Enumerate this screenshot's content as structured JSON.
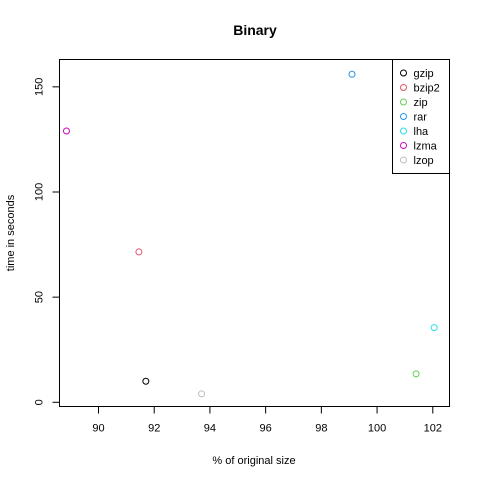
{
  "chart_data": {
    "type": "scatter",
    "title": "Binary",
    "xlabel": "% of original size",
    "ylabel": "time in seconds",
    "xlim": [
      88.6,
      102.6
    ],
    "ylim": [
      -2,
      163
    ],
    "x_ticks": [
      90,
      92,
      94,
      96,
      98,
      100,
      102
    ],
    "y_ticks": [
      0,
      50,
      100,
      150
    ],
    "grid": false,
    "legend_position": "top-right",
    "series": [
      {
        "name": "gzip",
        "color": "#000000",
        "x": 91.7,
        "y": 10
      },
      {
        "name": "bzip2",
        "color": "#DF536B",
        "x": 91.45,
        "y": 71.5
      },
      {
        "name": "zip",
        "color": "#61D04F",
        "x": 101.4,
        "y": 13.5
      },
      {
        "name": "rar",
        "color": "#2297E6",
        "x": 99.1,
        "y": 156
      },
      {
        "name": "lha",
        "color": "#28E2E5",
        "x": 102.05,
        "y": 35.5
      },
      {
        "name": "lzma",
        "color": "#CD0BBC",
        "x": 88.85,
        "y": 129
      },
      {
        "name": "lzop",
        "color": "#BEBEBE",
        "x": 93.7,
        "y": 4
      }
    ]
  }
}
